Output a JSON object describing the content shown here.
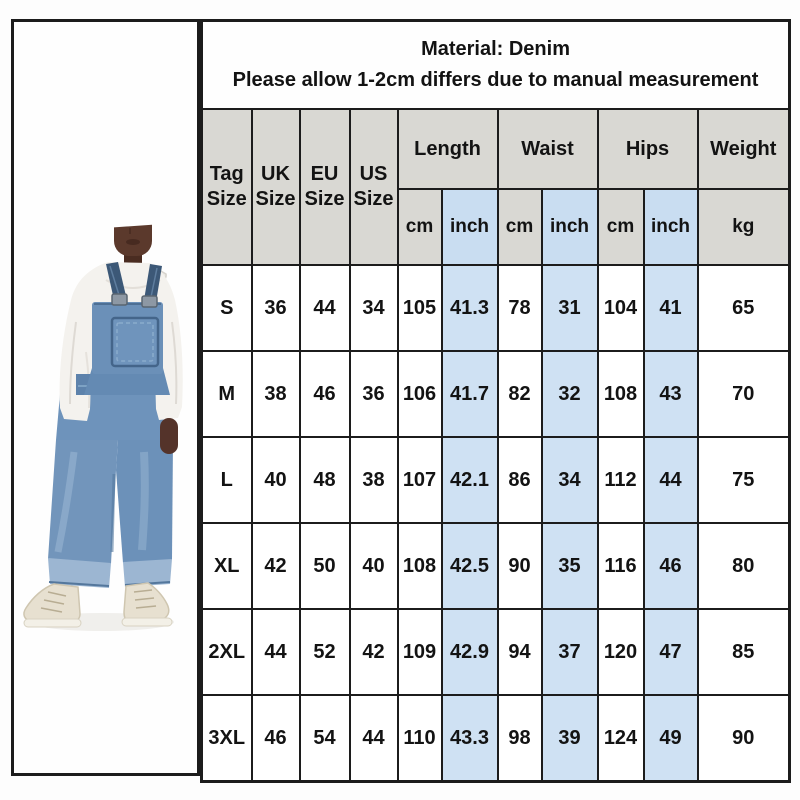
{
  "note": {
    "line1": "Material: Denim",
    "line2": "Please allow 1-2cm differs due to manual measurement"
  },
  "table": {
    "size_columns": [
      "Tag Size",
      "UK Size",
      "EU Size",
      "US Size"
    ],
    "groups": [
      {
        "label": "Length"
      },
      {
        "label": "Waist"
      },
      {
        "label": "Hips"
      },
      {
        "label": "Weight"
      }
    ],
    "units": [
      "cm",
      "inch",
      "cm",
      "inch",
      "cm",
      "inch",
      "kg"
    ]
  },
  "chart_data": {
    "type": "table",
    "title": "Material: Denim",
    "subtitle": "Please allow 1-2cm differs due to manual measurement",
    "columns": [
      "Tag Size",
      "UK Size",
      "EU Size",
      "US Size",
      "Length (cm)",
      "Length (inch)",
      "Waist (cm)",
      "Waist (inch)",
      "Hips (cm)",
      "Hips (inch)",
      "Weight (kg)"
    ],
    "rows": [
      [
        "S",
        "36",
        "44",
        "34",
        "105",
        "41.3",
        "78",
        "31",
        "104",
        "41",
        "65"
      ],
      [
        "M",
        "38",
        "46",
        "36",
        "106",
        "41.7",
        "82",
        "32",
        "108",
        "43",
        "70"
      ],
      [
        "L",
        "40",
        "48",
        "38",
        "107",
        "42.1",
        "86",
        "34",
        "112",
        "44",
        "75"
      ],
      [
        "XL",
        "42",
        "50",
        "40",
        "108",
        "42.5",
        "90",
        "35",
        "116",
        "46",
        "80"
      ],
      [
        "2XL",
        "44",
        "52",
        "42",
        "109",
        "42.9",
        "94",
        "37",
        "120",
        "47",
        "85"
      ],
      [
        "3XL",
        "46",
        "54",
        "44",
        "110",
        "43.3",
        "98",
        "39",
        "124",
        "49",
        "90"
      ]
    ]
  },
  "photo": {
    "description": "model wearing blue denim bib overalls over a white hoodie"
  },
  "colors": {
    "header_bg": "#d9d8d3",
    "inch_header_bg": "#c9ddf1",
    "inch_cell_bg": "#cfe1f3",
    "border": "#1c1c1c",
    "denim": "#6e93bb",
    "denim_dark_strap": "#3c5877",
    "hoodie": "#f4f2ee",
    "shoe": "#e7e0d0"
  }
}
